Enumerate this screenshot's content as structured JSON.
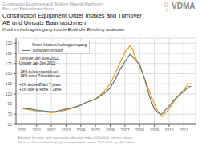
{
  "chart_data": {
    "type": "line",
    "title": [
      "Construction Equipment Order Intakes and Turnover",
      "AE und Umsatz Baumaschinen"
    ],
    "subtitle": [
      "Construction Equipment and Building Material Machinery",
      "Bau- und Baustoffmaschinen",
      "Knick im Auftragseingang konnte Ende der Erholung andeuten"
    ],
    "x": [
      2000.0,
      2000.33,
      2000.67,
      2001.0,
      2001.33,
      2001.67,
      2002.0,
      2002.33,
      2002.67,
      2003.0,
      2003.33,
      2003.67,
      2004.0,
      2004.33,
      2005.0,
      2005.33,
      2005.67,
      2006.0,
      2006.33,
      2006.67,
      2007.0,
      2007.33,
      2007.5,
      2007.67,
      2008.0,
      2008.33,
      2008.67,
      2009.0,
      2009.25,
      2009.5,
      2009.67,
      2010.0,
      2010.33,
      2010.67,
      2011.0,
      2011.17,
      2011.33,
      2011.5
    ],
    "series": [
      {
        "name": "Order Intakes/Auftragseingang",
        "color": "#E8A020",
        "values": [
          82,
          80,
          78,
          76,
          75,
          74,
          73,
          74,
          76,
          78,
          81,
          84,
          88,
          93,
          100,
          108,
          118,
          130,
          150,
          172,
          192,
          205,
          200,
          185,
          165,
          140,
          115,
          90,
          75,
          65,
          70,
          80,
          95,
          108,
          118,
          125,
          130,
          130
        ]
      },
      {
        "name": "Turnover/Umsatz",
        "color": "#607878",
        "values": [
          82,
          81,
          80,
          78,
          77,
          76,
          75,
          76,
          78,
          80,
          82,
          85,
          88,
          93,
          100,
          106,
          113,
          122,
          138,
          158,
          174,
          188,
          185,
          178,
          168,
          140,
          105,
          80,
          73,
          70,
          76,
          86,
          98,
          107,
          115,
          120,
          124,
          125
        ]
      }
    ],
    "xlim": [
      1999.6,
      2011.8
    ],
    "xticks": [
      2000,
      2001,
      2002,
      2003,
      2004,
      2005,
      2006,
      2007,
      2008,
      2009,
      2010,
      2011
    ],
    "ylim": [
      50,
      220
    ],
    "yticks": [
      50,
      70,
      90,
      110,
      130,
      150,
      170,
      190,
      210
    ],
    "grid": true,
    "legend": "upper left",
    "annotations": [
      "Turnover Jan-June 2011:\nUmsatz Jan-Juni 2011:\n\n-18% below record level\n-18% unter Rekordniveau\n\n+1% above Ø last 7 years\n+1% über Ø letzte 7 Jahre",
      "VDMA",
      "((",
      "(",
      "Adjusted for price and seasonally adjusted, index 2005=100, interior values\nPrice- und saisonbereinigt, glatt komponente, index 2005=100, qualtle Vdma"
    ]
  }
}
